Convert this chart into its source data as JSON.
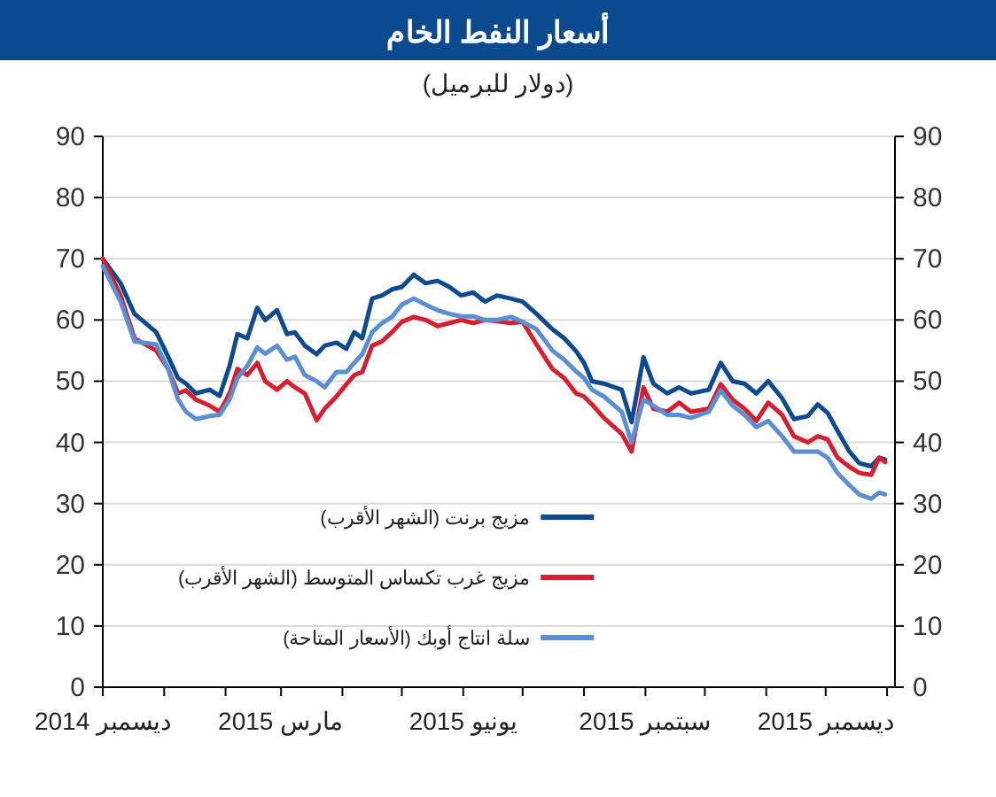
{
  "chart_data": {
    "type": "line",
    "title": "أسعار النفط الخام",
    "subtitle": "(دولار للبرميل)",
    "x": [
      "2014-12-01",
      "2014-12-10",
      "2014-12-17",
      "2014-12-28",
      "2015-01-03",
      "2015-01-08",
      "2015-01-12",
      "2015-01-17",
      "2015-01-24",
      "2015-01-29",
      "2015-02-03",
      "2015-02-07",
      "2015-02-12",
      "2015-02-17",
      "2015-02-21",
      "2015-02-27",
      "2015-03-04",
      "2015-03-08",
      "2015-03-13",
      "2015-03-19",
      "2015-03-23",
      "2015-03-29",
      "2015-04-03",
      "2015-04-07",
      "2015-04-11",
      "2015-04-16",
      "2015-04-21",
      "2015-04-26",
      "2015-05-01",
      "2015-05-07",
      "2015-05-13",
      "2015-05-19",
      "2015-05-25",
      "2015-05-31",
      "2015-06-06",
      "2015-06-12",
      "2015-06-18",
      "2015-06-25",
      "2015-07-01",
      "2015-07-08",
      "2015-07-16",
      "2015-07-22",
      "2015-07-28",
      "2015-08-01",
      "2015-08-05",
      "2015-08-11",
      "2015-08-20",
      "2015-08-25",
      "2015-08-31",
      "2015-09-05",
      "2015-09-12",
      "2015-09-18",
      "2015-09-24",
      "2015-10-03",
      "2015-10-09",
      "2015-10-15",
      "2015-10-21",
      "2015-10-27",
      "2015-11-02",
      "2015-11-09",
      "2015-11-15",
      "2015-11-22",
      "2015-11-27",
      "2015-12-02",
      "2015-12-07",
      "2015-12-13",
      "2015-12-18",
      "2015-12-24",
      "2015-12-28",
      "2015-12-31"
    ],
    "series": [
      {
        "name": "مزيج برنت (الشهر الأقرب)",
        "color": "#0d4a8f",
        "values": [
          70,
          66,
          61,
          58,
          54,
          50.5,
          49.6,
          48,
          48.6,
          47.6,
          52.5,
          57.7,
          57,
          62,
          60,
          61.6,
          57.7,
          58,
          55.8,
          54.4,
          55.8,
          56.3,
          55.3,
          58,
          57,
          63.5,
          64,
          65,
          65.4,
          67.4,
          66,
          66.4,
          65.4,
          64,
          64.5,
          63,
          64,
          63.5,
          63,
          61,
          58.5,
          57,
          54.9,
          53,
          50,
          49.6,
          48.6,
          43.3,
          53.9,
          49.6,
          48,
          49,
          48,
          48.6,
          53,
          50,
          49.6,
          48,
          50,
          47.2,
          43.8,
          44.3,
          46.2,
          44.8,
          41.9,
          38.5,
          36.6,
          36.1,
          37.5,
          37.2
        ]
      },
      {
        "name": "مزيج غرب تكساس المتوسط (الشهر الأقرب)",
        "color": "#d7202f",
        "values": [
          70,
          64,
          57,
          55,
          52,
          48,
          48.5,
          47,
          46,
          45,
          48,
          52,
          51,
          53,
          50,
          48.6,
          50,
          49,
          48,
          43.6,
          45.5,
          47.5,
          49.5,
          51,
          51.5,
          55.8,
          56.5,
          58,
          59.7,
          60.5,
          60,
          59,
          59.5,
          60,
          59.5,
          60,
          59.8,
          59.5,
          59.7,
          56,
          52,
          50.5,
          48,
          47.5,
          46.2,
          44,
          41.4,
          38.5,
          49,
          45.5,
          45,
          46.5,
          45,
          45.5,
          49.5,
          47,
          45.5,
          43.5,
          46.5,
          44.5,
          41,
          40,
          41,
          40.5,
          37.5,
          36,
          35,
          34.7,
          37.5,
          36.8
        ]
      },
      {
        "name": "سلة انتاج أوبك (الأسعار المتاحة)",
        "color": "#5b8fd4",
        "values": [
          68.8,
          63,
          56.5,
          56,
          52,
          47,
          45,
          43.8,
          44.3,
          44.5,
          47,
          50.5,
          52.5,
          55.5,
          54.5,
          55.8,
          53.5,
          54,
          51,
          50,
          49,
          51.5,
          51.5,
          53,
          54.4,
          58,
          59.5,
          60.5,
          62.5,
          63.5,
          62.5,
          61.6,
          61,
          60.6,
          60.6,
          60,
          60,
          60.5,
          59.7,
          58.5,
          55,
          53.5,
          51.6,
          50.5,
          48.6,
          47.5,
          45,
          40,
          47,
          46,
          44.5,
          44.5,
          44,
          45,
          48.5,
          46,
          44.5,
          42.5,
          43.5,
          41,
          38.5,
          38.5,
          38.5,
          37.5,
          35,
          33,
          31.5,
          30.8,
          31.8,
          31.5
        ]
      }
    ],
    "xlim": [
      "2014-12-01",
      "2016-01-05"
    ],
    "xticks": [
      {
        "value": "2014-12-01",
        "label": "ديسمبر 2014"
      },
      {
        "value": "2015-01-01",
        "label": null
      },
      {
        "value": "2015-02-01",
        "label": null
      },
      {
        "value": "2015-03-01",
        "label": "مارس 2015"
      },
      {
        "value": "2015-04-01",
        "label": null
      },
      {
        "value": "2015-05-01",
        "label": null
      },
      {
        "value": "2015-06-01",
        "label": "يونيو 2015"
      },
      {
        "value": "2015-07-01",
        "label": null
      },
      {
        "value": "2015-08-01",
        "label": null
      },
      {
        "value": "2015-09-01",
        "label": "سبتمبر 2015"
      },
      {
        "value": "2015-10-01",
        "label": null
      },
      {
        "value": "2015-11-01",
        "label": null
      },
      {
        "value": "2015-12-01",
        "label": "ديسمبر 2015"
      },
      {
        "value": "2016-01-01",
        "label": null
      }
    ],
    "ylim": [
      0,
      90
    ],
    "yticks": [
      0,
      10,
      20,
      30,
      40,
      50,
      60,
      70,
      80,
      90
    ],
    "y2lim": [
      0,
      90
    ],
    "y2ticks": [
      0,
      10,
      20,
      30,
      40,
      50,
      60,
      70,
      80,
      90
    ],
    "grid": "y",
    "legend": "bottom"
  }
}
